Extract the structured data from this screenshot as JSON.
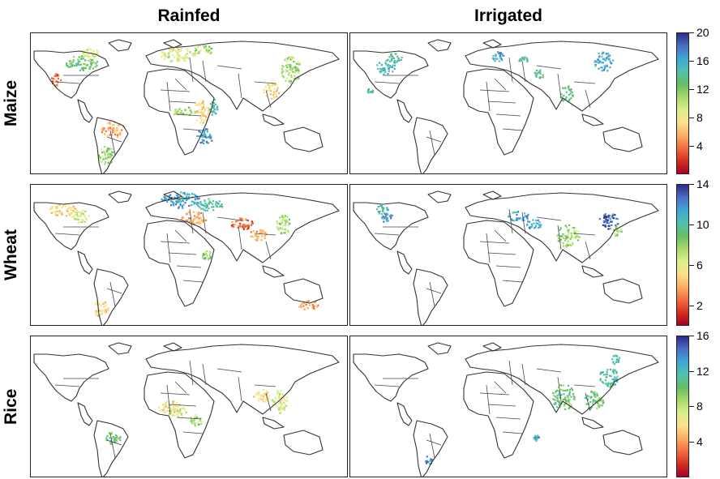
{
  "columns": [
    "Rainfed",
    "Irrigated"
  ],
  "rows": [
    {
      "crop": "Maize",
      "colorbar": {
        "ticks": [
          "4",
          "8",
          "12",
          "16",
          "20"
        ],
        "tick_values": [
          4,
          8,
          12,
          16,
          20
        ],
        "min": 0,
        "max": 20
      }
    },
    {
      "crop": "Wheat",
      "colorbar": {
        "ticks": [
          "2",
          "6",
          "10",
          "14"
        ],
        "tick_values": [
          2,
          6,
          10,
          14
        ],
        "min": 0,
        "max": 14
      }
    },
    {
      "crop": "Rice",
      "colorbar": {
        "ticks": [
          "4",
          "8",
          "12",
          "16"
        ],
        "tick_values": [
          4,
          8,
          12,
          16
        ],
        "min": 0,
        "max": 16
      }
    }
  ],
  "colormap": [
    "#a50026",
    "#d7301f",
    "#f46d43",
    "#fdae61",
    "#fee08b",
    "#d9ef8b",
    "#a6d96a",
    "#66bd63",
    "#4fc2b0",
    "#3fa7d6",
    "#4a6fc4",
    "#2c2a8c"
  ]
}
